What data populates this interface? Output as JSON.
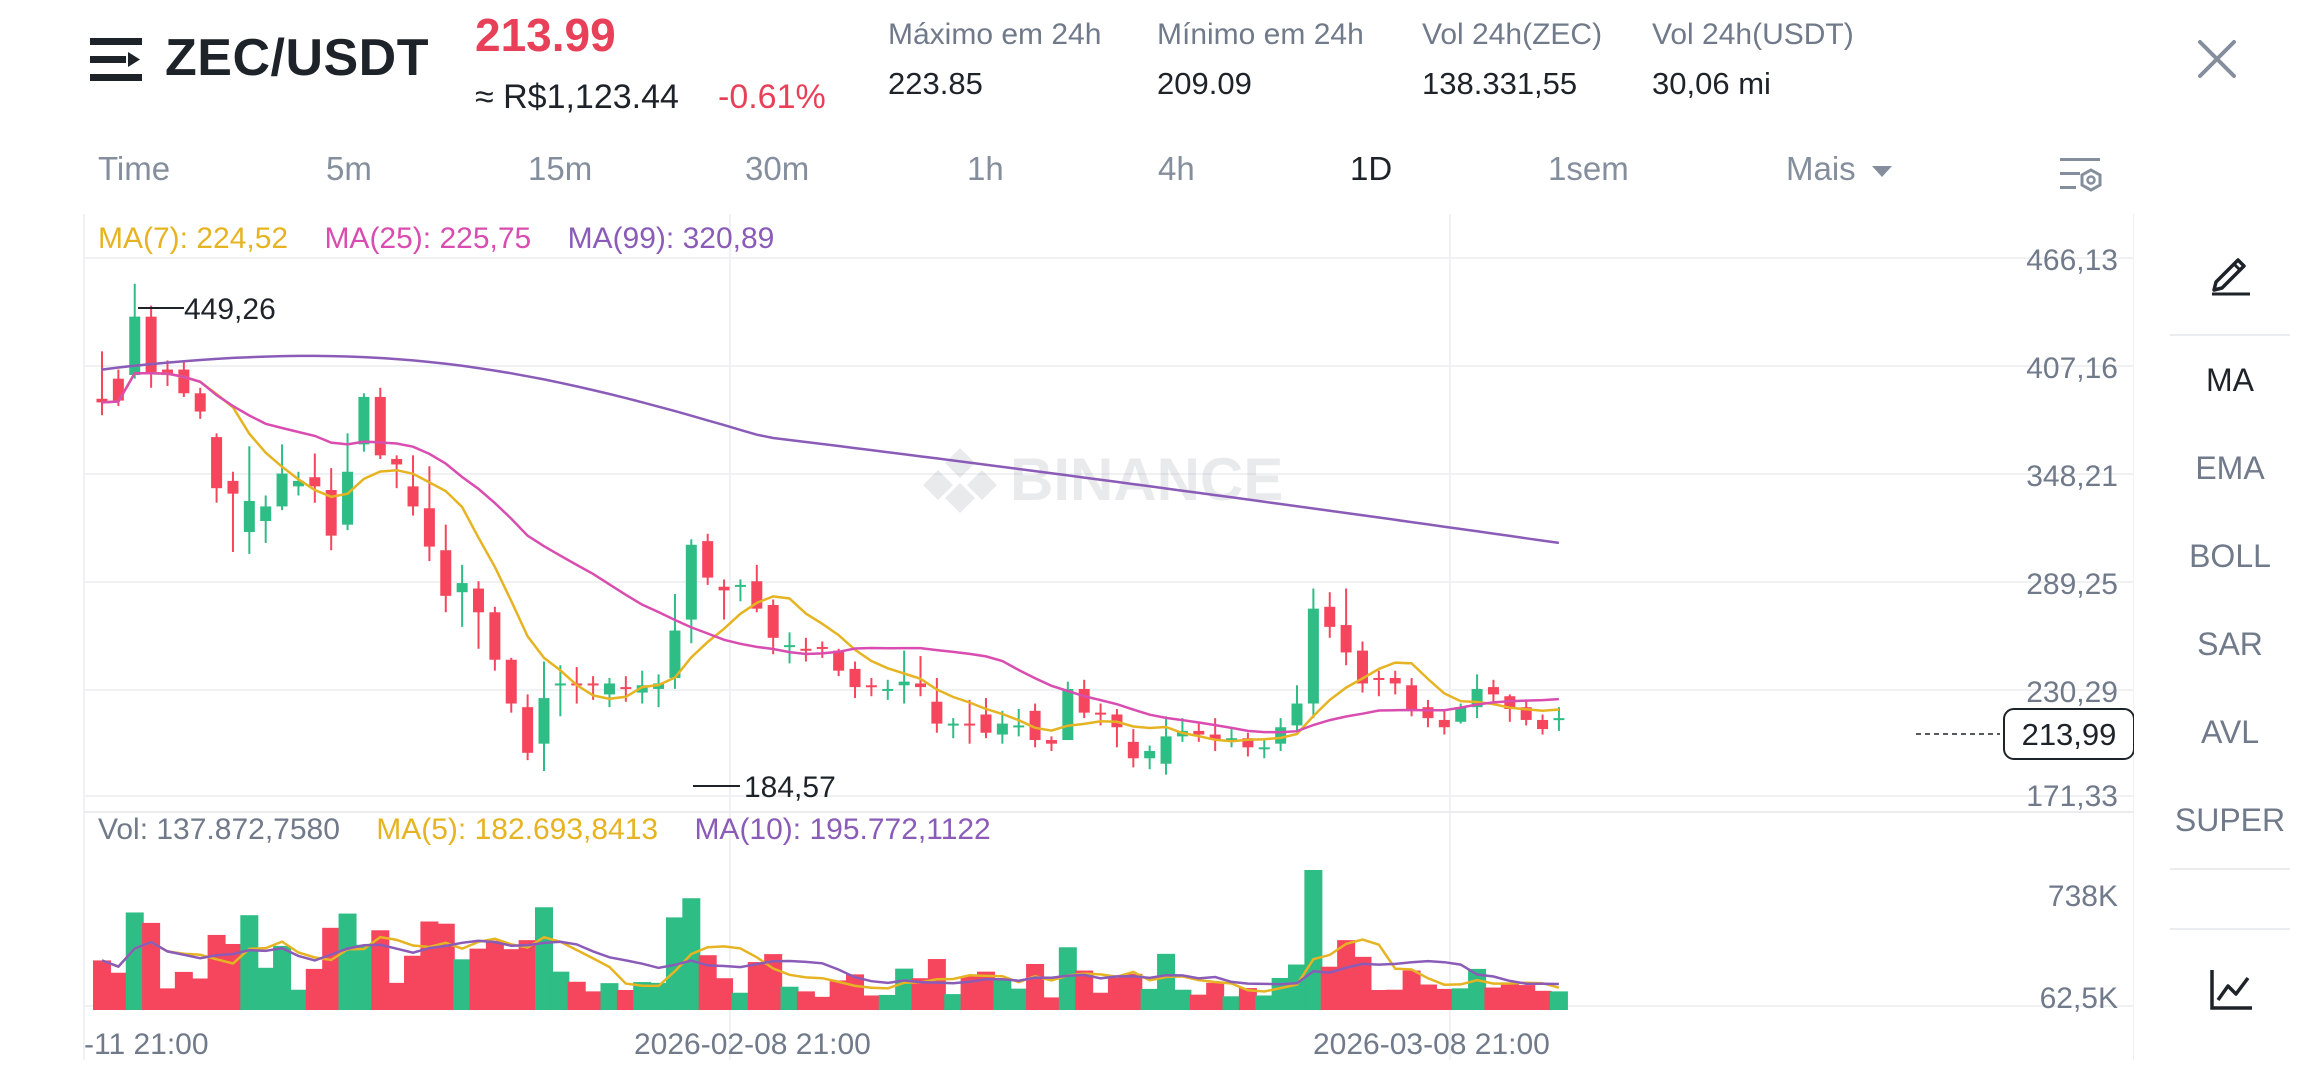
{
  "header": {
    "pair": "ZEC/USDT",
    "last_price": "213.99",
    "brl_price": "≈ R$1,123.44",
    "change_pct": "-0.61%",
    "stats": [
      {
        "label": "Máximo em 24h",
        "value": "223.85"
      },
      {
        "label": "Mínimo em 24h",
        "value": "209.09"
      },
      {
        "label": "Vol 24h(ZEC)",
        "value": "138.331,55"
      },
      {
        "label": "Vol 24h(USDT)",
        "value": "30,06 mi"
      }
    ]
  },
  "tabs": [
    "Time",
    "5m",
    "15m",
    "30m",
    "1h",
    "4h",
    "1D",
    "1sem",
    "Mais"
  ],
  "active_tab": "1D",
  "legend": {
    "ma7": "MA(7): 224,52",
    "ma25": "MA(25): 225,75",
    "ma99": "MA(99): 320,89",
    "vol": "Vol: 137.872,7580",
    "vol_ma5": "MA(5): 182.693,8413",
    "vol_ma10": "MA(10): 195.772,1122"
  },
  "watermark": "BINANCE",
  "price_axis": [
    "466,13",
    "407,16",
    "348,21",
    "289,25",
    "230,29",
    "171,33"
  ],
  "current_price_tag": "213,99",
  "high_marker": "449,26",
  "low_marker": "184,57",
  "volume_axis": [
    "738K",
    "62,5K"
  ],
  "date_axis": [
    "-11 21:00",
    "2026-02-08 21:00",
    "2026-03-08 21:00"
  ],
  "indicators": [
    "MA",
    "EMA",
    "BOLL",
    "SAR",
    "AVL",
    "SUPER"
  ],
  "colors": {
    "up": "#2ebd85",
    "down": "#f6465d",
    "ma7": "#e6b422",
    "ma25": "#d94db0",
    "ma99": "#8a5cb8",
    "text_muted": "#848e9c"
  },
  "chart_data": {
    "type": "candlestick",
    "interval": "1D",
    "price_range": [
      171.33,
      466.13
    ],
    "candles": [
      [
        389,
        387,
        415,
        380
      ],
      [
        400,
        388,
        405,
        385
      ],
      [
        402,
        434,
        452,
        400
      ],
      [
        434,
        403,
        440,
        395
      ],
      [
        405,
        402,
        410,
        396
      ],
      [
        405,
        392,
        410,
        390
      ],
      [
        392,
        382,
        395,
        378
      ],
      [
        368,
        340,
        370,
        332
      ],
      [
        344,
        337,
        349,
        305
      ],
      [
        316,
        333,
        363,
        304
      ],
      [
        322,
        330,
        336,
        310
      ],
      [
        330,
        348,
        364,
        328
      ],
      [
        341,
        344,
        349,
        336
      ],
      [
        346,
        341,
        359,
        332
      ],
      [
        339,
        314,
        351,
        306
      ],
      [
        320,
        349,
        370,
        317
      ],
      [
        364,
        390,
        392,
        360
      ],
      [
        390,
        358,
        395,
        356
      ],
      [
        356,
        353,
        358,
        340
      ],
      [
        341,
        330,
        358,
        325
      ],
      [
        329,
        308,
        352,
        300
      ],
      [
        306,
        281,
        320,
        272
      ],
      [
        283,
        288,
        298,
        264
      ],
      [
        285,
        272,
        289,
        252
      ],
      [
        272,
        246,
        275,
        240
      ],
      [
        246,
        222,
        247,
        217
      ],
      [
        220,
        195,
        227,
        191
      ],
      [
        200,
        225,
        245,
        185
      ],
      [
        233,
        233,
        243,
        215
      ],
      [
        233,
        232,
        242,
        222
      ],
      [
        233,
        232,
        237,
        224
      ],
      [
        227,
        233,
        236,
        220
      ],
      [
        231,
        230,
        237,
        223
      ],
      [
        228,
        232,
        240,
        222
      ],
      [
        230,
        233,
        238,
        220
      ],
      [
        236,
        262,
        282,
        230
      ],
      [
        268,
        309,
        312,
        255
      ],
      [
        311,
        291,
        315,
        287
      ],
      [
        286,
        284,
        290,
        268
      ],
      [
        286,
        287,
        290,
        278
      ],
      [
        289,
        274,
        298,
        272
      ],
      [
        276,
        258,
        279,
        249
      ],
      [
        254,
        254,
        261,
        244
      ],
      [
        252,
        251,
        258,
        245
      ],
      [
        253,
        252,
        256,
        247
      ],
      [
        251,
        240,
        252,
        237
      ],
      [
        241,
        231,
        245,
        225
      ],
      [
        232,
        231,
        236,
        226
      ],
      [
        230,
        230,
        235,
        224
      ],
      [
        232,
        234,
        251,
        222
      ],
      [
        233,
        231,
        248,
        226
      ],
      [
        223,
        211,
        236,
        206
      ],
      [
        210,
        211,
        214,
        203
      ],
      [
        211,
        210,
        224,
        200
      ],
      [
        216,
        206,
        225,
        203
      ],
      [
        205,
        211,
        218,
        200
      ],
      [
        209,
        210,
        219,
        204
      ],
      [
        218,
        202,
        222,
        198
      ],
      [
        202,
        200,
        204,
        196
      ],
      [
        202,
        230,
        234,
        205
      ],
      [
        230,
        217,
        235,
        214
      ],
      [
        217,
        216,
        222,
        210
      ],
      [
        216,
        209,
        219,
        198
      ],
      [
        201,
        192,
        208,
        187
      ],
      [
        192,
        196,
        199,
        186
      ],
      [
        189,
        204,
        215,
        183
      ],
      [
        204,
        207,
        214,
        201
      ],
      [
        207,
        205,
        211,
        201
      ],
      [
        205,
        202,
        214,
        196
      ],
      [
        203,
        203,
        208,
        198
      ],
      [
        203,
        198,
        206,
        193
      ],
      [
        197,
        198,
        202,
        192
      ],
      [
        200,
        209,
        214,
        196
      ],
      [
        210,
        222,
        232,
        206
      ],
      [
        222,
        274,
        285,
        214
      ],
      [
        275,
        264,
        283,
        258
      ],
      [
        265,
        250,
        285,
        243
      ],
      [
        251,
        233,
        256,
        228
      ],
      [
        236,
        235,
        240,
        226
      ],
      [
        236,
        233,
        240,
        227
      ],
      [
        232,
        219,
        236,
        215
      ],
      [
        220,
        214,
        224,
        209
      ],
      [
        213,
        209,
        218,
        205
      ],
      [
        212,
        220,
        222,
        211
      ],
      [
        220,
        230,
        238,
        214
      ],
      [
        231,
        227,
        235,
        221
      ],
      [
        226,
        219,
        227,
        212
      ],
      [
        220,
        213,
        224,
        210
      ],
      [
        213,
        208,
        216,
        205
      ],
      [
        213,
        214,
        220,
        207
      ]
    ]
  }
}
